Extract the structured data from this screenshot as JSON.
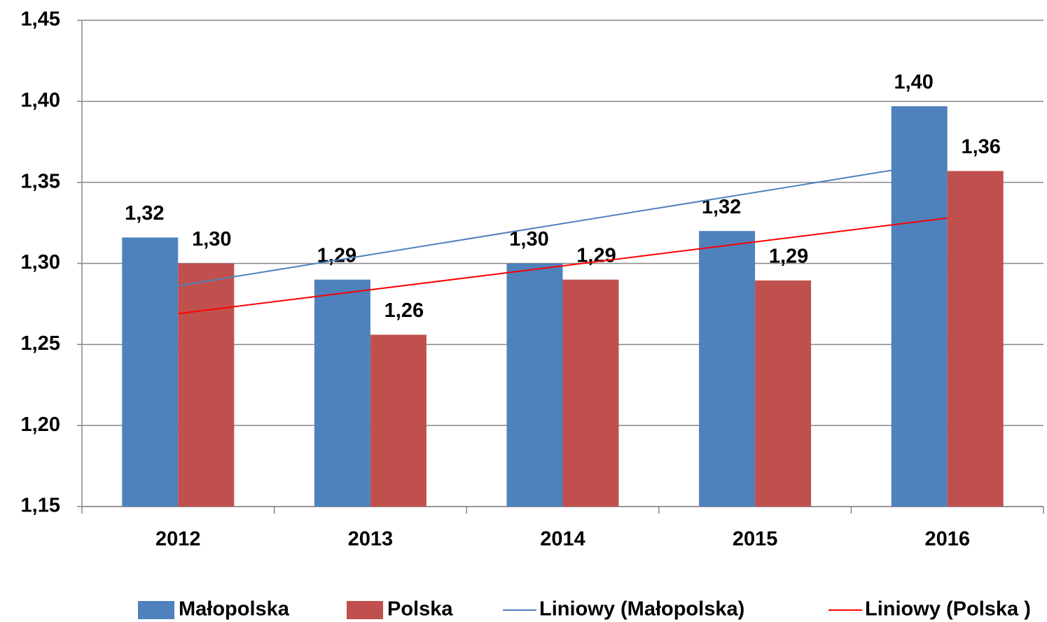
{
  "chart_data": {
    "type": "bar",
    "categories": [
      "2012",
      "2013",
      "2014",
      "2015",
      "2016"
    ],
    "series": [
      {
        "name": "Małopolska",
        "color": "#4f81bd",
        "values": [
          1.316,
          1.29,
          1.3,
          1.32,
          1.397
        ],
        "value_labels": [
          "1,32",
          "1,29",
          "1,30",
          "1,32",
          "1,40"
        ],
        "trendline": {
          "name": "Liniowy (Małopolska)",
          "color": "#4f81bd"
        }
      },
      {
        "name": "Polska",
        "color": "#c0504d",
        "values": [
          1.3,
          1.256,
          1.29,
          1.2895,
          1.357
        ],
        "value_labels": [
          "1,30",
          "1,26",
          "1,29",
          "1,29",
          "1,36"
        ],
        "trendline": {
          "name": "Liniowy (Polska )",
          "color": "#ff0000"
        }
      }
    ],
    "ylim": [
      1.15,
      1.45
    ],
    "yticks": [
      {
        "value": 1.15,
        "label": "1,15"
      },
      {
        "value": 1.2,
        "label": "1,20"
      },
      {
        "value": 1.25,
        "label": "1,25"
      },
      {
        "value": 1.3,
        "label": "1,30"
      },
      {
        "value": 1.35,
        "label": "1,35"
      },
      {
        "value": 1.4,
        "label": "1,40"
      },
      {
        "value": 1.45,
        "label": "1,45"
      }
    ],
    "grid": true,
    "legend": "bottom"
  }
}
